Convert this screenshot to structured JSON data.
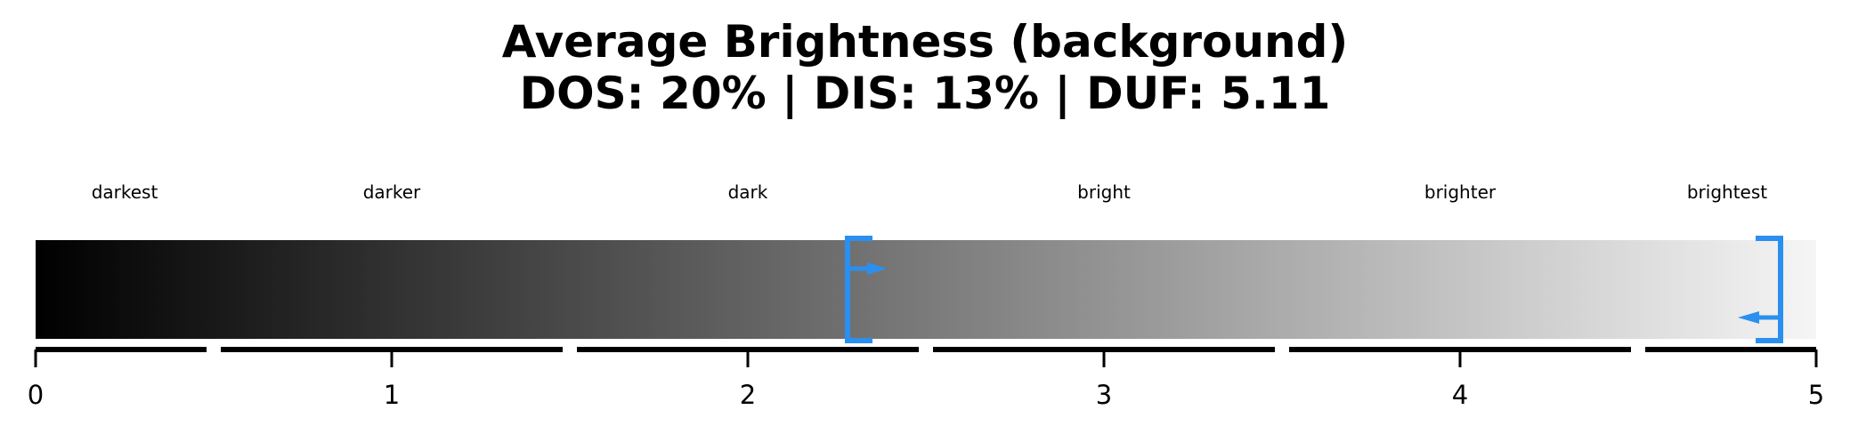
{
  "chart_data": {
    "type": "range_bar",
    "title_lines": [
      "Average Brightness (background)",
      "DOS: 20% | DIS: 13% | DUF: 5.11"
    ],
    "xlim": [
      0,
      5
    ],
    "xticks": [
      0,
      1,
      2,
      3,
      4,
      5
    ],
    "xtick_labels": [
      "0",
      "1",
      "2",
      "3",
      "4",
      "5"
    ],
    "gradient": {
      "from_color": "#000000",
      "to_color": "#f5f5f5"
    },
    "categories": [
      {
        "label": "darkest",
        "range": [
          0,
          0.5
        ]
      },
      {
        "label": "darker",
        "range": [
          0.5,
          1.5
        ]
      },
      {
        "label": "dark",
        "range": [
          1.5,
          2.5
        ]
      },
      {
        "label": "bright",
        "range": [
          2.5,
          3.5
        ]
      },
      {
        "label": "brighter",
        "range": [
          3.5,
          4.5
        ]
      },
      {
        "label": "brightest",
        "range": [
          4.5,
          5.0
        ]
      }
    ],
    "markers": [
      {
        "value": 2.28,
        "bracket": "left",
        "arrow": "right"
      },
      {
        "value": 4.9,
        "bracket": "right",
        "arrow": "left"
      }
    ],
    "marker_color": "#2b8ff0",
    "grid": false
  }
}
